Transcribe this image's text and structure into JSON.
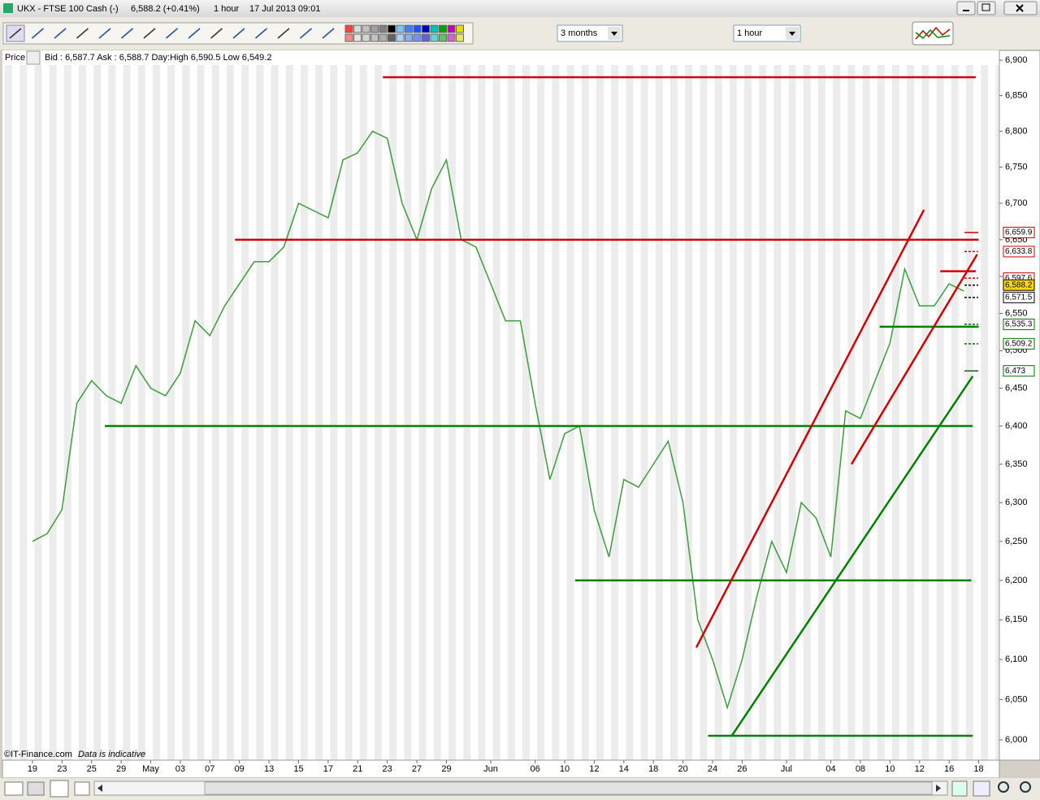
{
  "window": {
    "title": "UKX - FTSE 100 Cash (-)",
    "quote": "6,588.2 (+0.41%)",
    "interval": "1 hour",
    "timestamp": "17 Jul 2013 09:01"
  },
  "toolbar": {
    "period": "3 months",
    "interval": "1 hour"
  },
  "chart_header": {
    "label": "Price",
    "quote_info": "Bid : 6,587.7  Ask : 6,588.7  Day:High 6,590.5  Low 6,549.2"
  },
  "footer": {
    "copyright": "©IT-Finance.com",
    "note": "Data is indicative"
  },
  "chart_data": {
    "type": "line",
    "log_scale": true,
    "color": "#3c9c3c",
    "x": [
      0,
      1,
      2,
      3,
      4,
      5,
      6,
      7,
      8,
      9,
      10,
      11,
      12,
      13,
      14,
      15,
      16,
      17,
      18,
      19,
      20,
      21,
      22,
      23,
      24,
      25,
      26,
      27,
      28,
      29,
      30,
      31,
      32,
      33,
      34,
      35,
      36,
      37,
      38,
      39,
      40,
      41,
      42,
      43,
      44,
      45,
      46,
      47,
      48,
      49,
      50,
      51,
      52,
      53,
      54,
      55,
      56,
      57,
      58,
      59,
      60,
      61,
      62,
      63
    ],
    "values": [
      6250,
      6260,
      6291,
      6430,
      6460,
      6440,
      6430,
      6480,
      6450,
      6440,
      6470,
      6540,
      6520,
      6560,
      6590,
      6620,
      6620,
      6640,
      6700,
      6690,
      6680,
      6760,
      6770,
      6800,
      6790,
      6700,
      6650,
      6720,
      6760,
      6650,
      6640,
      6590,
      6540,
      6540,
      6430,
      6330,
      6390,
      6400,
      6290,
      6230,
      6330,
      6320,
      6350,
      6380,
      6300,
      6150,
      6100,
      6040,
      6100,
      6180,
      6250,
      6210,
      6300,
      6280,
      6230,
      6420,
      6410,
      6460,
      6510,
      6610,
      6560,
      6560,
      6590,
      6580
    ],
    "xlim": [
      -2.03,
      65.4
    ],
    "ylim": [
      5975,
      6914
    ],
    "xticks": [
      {
        "value": 0,
        "label": "19"
      },
      {
        "value": 2,
        "label": "23"
      },
      {
        "value": 4,
        "label": "25"
      },
      {
        "value": 6,
        "label": "29"
      },
      {
        "value": 8,
        "label": "May"
      },
      {
        "value": 10,
        "label": "03"
      },
      {
        "value": 12,
        "label": "07"
      },
      {
        "value": 14,
        "label": "09"
      },
      {
        "value": 16,
        "label": "13"
      },
      {
        "value": 18,
        "label": "15"
      },
      {
        "value": 20,
        "label": "17"
      },
      {
        "value": 22,
        "label": "21"
      },
      {
        "value": 24,
        "label": "23"
      },
      {
        "value": 26,
        "label": "27"
      },
      {
        "value": 28,
        "label": "29"
      },
      {
        "value": 31,
        "label": "Jun"
      },
      {
        "value": 34,
        "label": "06"
      },
      {
        "value": 36,
        "label": "10"
      },
      {
        "value": 38,
        "label": "12"
      },
      {
        "value": 40,
        "label": "14"
      },
      {
        "value": 42,
        "label": "18"
      },
      {
        "value": 44,
        "label": "20"
      },
      {
        "value": 46,
        "label": "24"
      },
      {
        "value": 48,
        "label": "26"
      },
      {
        "value": 51,
        "label": "Jul"
      },
      {
        "value": 54,
        "label": "04"
      },
      {
        "value": 56,
        "label": "08"
      },
      {
        "value": 58,
        "label": "10"
      },
      {
        "value": 60,
        "label": "12"
      },
      {
        "value": 62,
        "label": "16"
      },
      {
        "value": 64,
        "label": "18"
      }
    ],
    "yticks": [
      {
        "value": 6000,
        "label": "6,000"
      },
      {
        "value": 6050,
        "label": "6,050"
      },
      {
        "value": 6100,
        "label": "6,100"
      },
      {
        "value": 6150,
        "label": "6,150"
      },
      {
        "value": 6200,
        "label": "6,200"
      },
      {
        "value": 6250,
        "label": "6,250"
      },
      {
        "value": 6300,
        "label": "6,300"
      },
      {
        "value": 6350,
        "label": "6,350"
      },
      {
        "value": 6400,
        "label": "6,400"
      },
      {
        "value": 6450,
        "label": "6,450"
      },
      {
        "value": 6500,
        "label": "6,500"
      },
      {
        "value": 6550,
        "label": "6,550"
      },
      {
        "value": 6600,
        "label": "6,600"
      },
      {
        "value": 6650,
        "label": "6,650"
      },
      {
        "value": 6700,
        "label": "6,700"
      },
      {
        "value": 6750,
        "label": "6,750"
      },
      {
        "value": 6800,
        "label": "6,800"
      },
      {
        "value": 6850,
        "label": "6,850"
      },
      {
        "value": 6900,
        "label": "6,900"
      }
    ],
    "trendlines": [
      {
        "x1": 23.7,
        "y1": 6876,
        "x2": 63.8,
        "y2": 6876,
        "color": "#d00000"
      },
      {
        "x1": 13.7,
        "y1": 6650,
        "x2": 64.0,
        "y2": 6650,
        "color": "#d00000"
      },
      {
        "x1": 4.9,
        "y1": 6400,
        "x2": 63.6,
        "y2": 6400,
        "color": "#008000"
      },
      {
        "x1": 36.7,
        "y1": 6200,
        "x2": 63.5,
        "y2": 6200,
        "color": "#008000"
      },
      {
        "x1": 45.7,
        "y1": 6005,
        "x2": 63.6,
        "y2": 6005,
        "color": "#008000"
      },
      {
        "x1": 57.3,
        "y1": 6532,
        "x2": 64.0,
        "y2": 6532,
        "color": "#008000"
      },
      {
        "x1": 61.4,
        "y1": 6607,
        "x2": 63.8,
        "y2": 6607,
        "color": "#d00000"
      },
      {
        "x1": 44.9,
        "y1": 6115,
        "x2": 60.3,
        "y2": 6691,
        "color": "#d00000"
      },
      {
        "x1": 55.4,
        "y1": 6350,
        "x2": 63.9,
        "y2": 6630,
        "color": "#d00000"
      },
      {
        "x1": 47.3,
        "y1": 6005,
        "x2": 63.6,
        "y2": 6466,
        "color": "#008000"
      }
    ],
    "price_tags": [
      {
        "value": 6659.9,
        "label": "6,659.9",
        "color": "#cc0000",
        "fill": "#ffffff",
        "line_style": "solid"
      },
      {
        "value": 6633.8,
        "label": "6,633.8",
        "color": "#cc0000",
        "fill": "#ffffff",
        "line_style": "dashed"
      },
      {
        "value": 6597.6,
        "label": "6,597.6",
        "color": "#cc0000",
        "fill": "#ffffff",
        "line_style": "dashed"
      },
      {
        "value": 6571.5,
        "label": "6,571.5",
        "color": "#000000",
        "fill": "#ffffff",
        "line_style": "dashed"
      },
      {
        "value": 6535.3,
        "label": "6,535.3",
        "color": "#007000",
        "fill": "#ffffff",
        "line_style": "dashed"
      },
      {
        "value": 6509.2,
        "label": "6,509.2",
        "color": "#007000",
        "fill": "#ffffff",
        "line_style": "dashed"
      },
      {
        "value": 6473,
        "label": "6,473",
        "color": "#007000",
        "fill": "#ffffff",
        "line_style": "solid"
      },
      {
        "value": 6588.2,
        "label": "6,588.2",
        "color": "#000000",
        "fill": "#ffd800",
        "line_style": "dashed"
      }
    ]
  }
}
